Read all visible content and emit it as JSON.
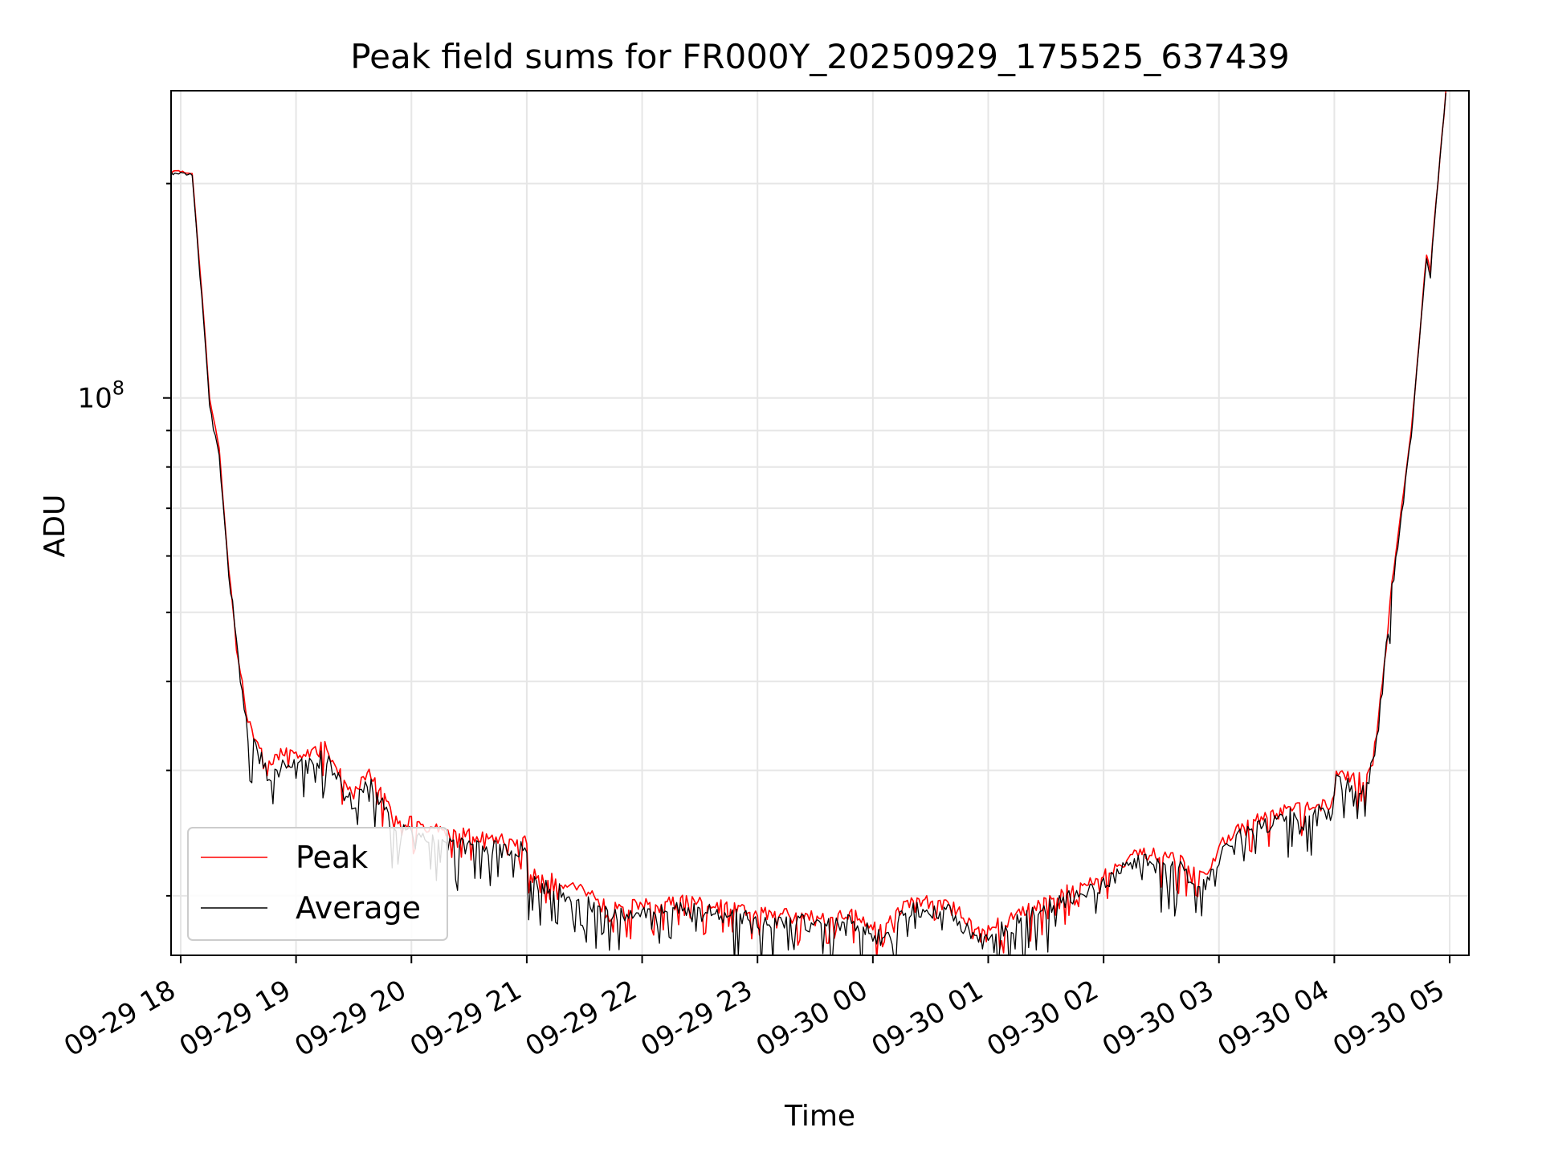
{
  "chart_data": {
    "type": "line",
    "title": "Peak field sums for FR000Y_20250929_175525_637439",
    "xlabel": "Time",
    "ylabel": "ADU",
    "x_tick_labels": [
      "09-29 18",
      "09-29 19",
      "09-29 20",
      "09-29 21",
      "09-29 22",
      "09-29 23",
      "09-30 00",
      "09-30 01",
      "09-30 02",
      "09-30 03",
      "09-30 04",
      "09-30 05"
    ],
    "y_tick_labels": [
      {
        "base": "10",
        "exp": "8"
      }
    ],
    "y_scale": "log",
    "ylim": [
      16500000,
      270000000
    ],
    "xlim": [
      "2025-09-29T17:55",
      "2025-09-30T05:10"
    ],
    "grid": true,
    "legend_position": "lower-left",
    "series": [
      {
        "name": "Peak",
        "color": "#ff0000",
        "noise": 0.05,
        "x": [
          "2025-09-29T17:55",
          "2025-09-29T18:06",
          "2025-09-29T18:12",
          "2025-09-29T18:15",
          "2025-09-29T18:18",
          "2025-09-29T18:20",
          "2025-09-29T18:25",
          "2025-09-29T18:30",
          "2025-09-29T18:35",
          "2025-09-29T18:45",
          "2025-09-29T18:55",
          "2025-09-29T19:05",
          "2025-09-29T19:15",
          "2025-09-29T19:25",
          "2025-09-29T19:30",
          "2025-09-29T19:38",
          "2025-09-29T19:45",
          "2025-09-29T19:50",
          "2025-09-29T19:55",
          "2025-09-29T20:00",
          "2025-09-29T20:20",
          "2025-09-29T20:35",
          "2025-09-29T20:50",
          "2025-09-29T21:00",
          "2025-09-29T21:01",
          "2025-09-29T21:30",
          "2025-09-29T21:45",
          "2025-09-29T22:00",
          "2025-09-29T22:20",
          "2025-09-29T22:40",
          "2025-09-29T23:00",
          "2025-09-29T23:30",
          "2025-09-29T23:50",
          "2025-09-30T00:00",
          "2025-09-30T00:05",
          "2025-09-30T00:10",
          "2025-09-30T00:15",
          "2025-09-30T00:25",
          "2025-09-30T00:40",
          "2025-09-30T00:50",
          "2025-09-30T01:00",
          "2025-09-30T01:10",
          "2025-09-30T01:30",
          "2025-09-30T02:00",
          "2025-09-30T02:15",
          "2025-09-30T02:25",
          "2025-09-30T02:40",
          "2025-09-30T02:48",
          "2025-09-30T02:52",
          "2025-09-30T03:00",
          "2025-09-30T03:05",
          "2025-09-30T03:20",
          "2025-09-30T03:40",
          "2025-09-30T03:59",
          "2025-09-30T04:01",
          "2025-09-30T04:05",
          "2025-09-30T04:15",
          "2025-09-30T04:20",
          "2025-09-30T04:25",
          "2025-09-30T04:30",
          "2025-09-30T04:40",
          "2025-09-30T04:48",
          "2025-09-30T04:50",
          "2025-09-30T04:51",
          "2025-09-30T04:55",
          "2025-09-30T04:58"
        ],
        "y": [
          209000000,
          207000000,
          130000000,
          100000000,
          91000000,
          85000000,
          58000000,
          44000000,
          35000000,
          31000000,
          32000000,
          31500000,
          33000000,
          29000000,
          28000000,
          30000000,
          28000000,
          26000000,
          25500000,
          25600000,
          24700000,
          24300000,
          24000000,
          24000000,
          21700000,
          20500000,
          19400000,
          19500000,
          19800000,
          19500000,
          19000000,
          18900000,
          19000000,
          18200000,
          18000000,
          18600000,
          19400000,
          19800000,
          19500000,
          18500000,
          18000000,
          18700000,
          19800000,
          21500000,
          22900000,
          23000000,
          22500000,
          21500000,
          21300000,
          23400000,
          24400000,
          25700000,
          26700000,
          27000000,
          29700000,
          29500000,
          29300000,
          31000000,
          40000000,
          55000000,
          90000000,
          160000000,
          150000000,
          165000000,
          220000000,
          270000000
        ]
      },
      {
        "name": "Average",
        "color": "#000000",
        "noise": 0.07,
        "x": [
          "2025-09-29T17:55",
          "2025-09-29T18:06",
          "2025-09-29T18:12",
          "2025-09-29T18:15",
          "2025-09-29T18:18",
          "2025-09-29T18:20",
          "2025-09-29T18:25",
          "2025-09-29T18:30",
          "2025-09-29T18:35",
          "2025-09-29T18:45",
          "2025-09-29T18:55",
          "2025-09-29T19:05",
          "2025-09-29T19:15",
          "2025-09-29T19:25",
          "2025-09-29T19:30",
          "2025-09-29T19:38",
          "2025-09-29T19:45",
          "2025-09-29T19:50",
          "2025-09-29T19:55",
          "2025-09-29T20:00",
          "2025-09-29T20:20",
          "2025-09-29T20:35",
          "2025-09-29T20:50",
          "2025-09-29T21:00",
          "2025-09-29T21:01",
          "2025-09-29T21:30",
          "2025-09-29T21:45",
          "2025-09-29T22:00",
          "2025-09-29T22:20",
          "2025-09-29T22:40",
          "2025-09-29T23:00",
          "2025-09-29T23:30",
          "2025-09-29T23:50",
          "2025-09-30T00:00",
          "2025-09-30T00:05",
          "2025-09-30T00:10",
          "2025-09-30T00:15",
          "2025-09-30T00:25",
          "2025-09-30T00:40",
          "2025-09-30T00:50",
          "2025-09-30T01:00",
          "2025-09-30T01:10",
          "2025-09-30T01:30",
          "2025-09-30T02:00",
          "2025-09-30T02:15",
          "2025-09-30T02:25",
          "2025-09-30T02:40",
          "2025-09-30T02:48",
          "2025-09-30T02:52",
          "2025-09-30T03:00",
          "2025-09-30T03:05",
          "2025-09-30T03:20",
          "2025-09-30T03:40",
          "2025-09-30T03:59",
          "2025-09-30T04:01",
          "2025-09-30T04:05",
          "2025-09-30T04:15",
          "2025-09-30T04:20",
          "2025-09-30T04:25",
          "2025-09-30T04:30",
          "2025-09-30T04:40",
          "2025-09-30T04:48",
          "2025-09-30T04:50",
          "2025-09-30T04:51",
          "2025-09-30T04:55",
          "2025-09-30T04:58"
        ],
        "y": [
          208000000,
          206000000,
          128000000,
          98000000,
          89000000,
          83000000,
          57000000,
          43000000,
          34000000,
          30000000,
          31000000,
          30500000,
          32000000,
          28000000,
          27200000,
          29000000,
          27000000,
          25000000,
          24800000,
          24800000,
          23900000,
          23500000,
          23300000,
          23300000,
          21000000,
          19900000,
          18900000,
          19000000,
          19300000,
          19000000,
          18500000,
          18400000,
          18500000,
          17700000,
          17500000,
          18100000,
          18900000,
          19300000,
          19000000,
          18000000,
          17500000,
          18200000,
          19300000,
          21000000,
          22300000,
          22400000,
          21900000,
          20900000,
          20800000,
          22800000,
          23800000,
          25100000,
          26100000,
          26400000,
          29000000,
          28800000,
          28600000,
          30500000,
          39500000,
          54000000,
          89000000,
          158000000,
          148000000,
          163000000,
          218000000,
          268000000
        ]
      }
    ]
  }
}
